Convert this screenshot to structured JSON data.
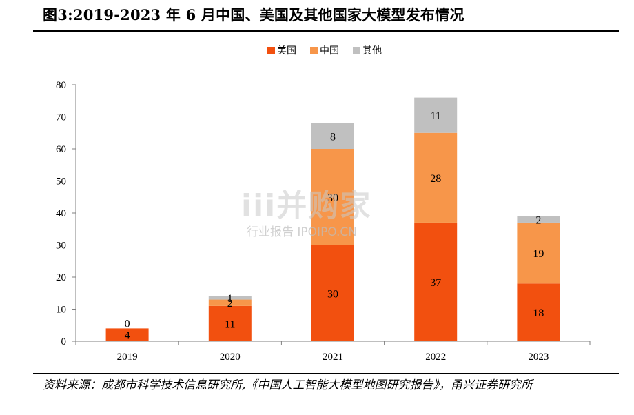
{
  "title": "图3:2019-2023 年 6 月中国、美国及其他国家大模型发布情况",
  "source": "资料来源：成都市科学技术信息研究所,《中国人工智能大模型地图研究报告》，甬兴证券研究所",
  "watermark": {
    "main": "iii并购家",
    "sub": "行业报告 IPOIPO.CN"
  },
  "colors": {
    "美国": "#f2500f",
    "中国": "#f7964a",
    "其他": "#c0c0c0"
  },
  "chart_data": {
    "type": "bar",
    "stacked": true,
    "categories": [
      "2019",
      "2020",
      "2021",
      "2022",
      "2023"
    ],
    "series": [
      {
        "name": "美国",
        "values": [
          4,
          11,
          30,
          37,
          18
        ]
      },
      {
        "name": "中国",
        "values": [
          0,
          2,
          30,
          28,
          19
        ]
      },
      {
        "name": "其他",
        "values": [
          0,
          1,
          8,
          11,
          2
        ]
      }
    ],
    "data_labels": [
      [
        "4",
        "11",
        "30",
        "37",
        "18"
      ],
      [
        "0",
        "2",
        "30",
        "28",
        "19"
      ],
      [
        "",
        "1",
        "8",
        "11",
        "2"
      ]
    ],
    "yticks": [
      "0",
      "10",
      "20",
      "30",
      "40",
      "50",
      "60",
      "70",
      "80"
    ],
    "ylim": [
      0,
      80
    ],
    "legend_position": "top-center",
    "grid": false
  }
}
